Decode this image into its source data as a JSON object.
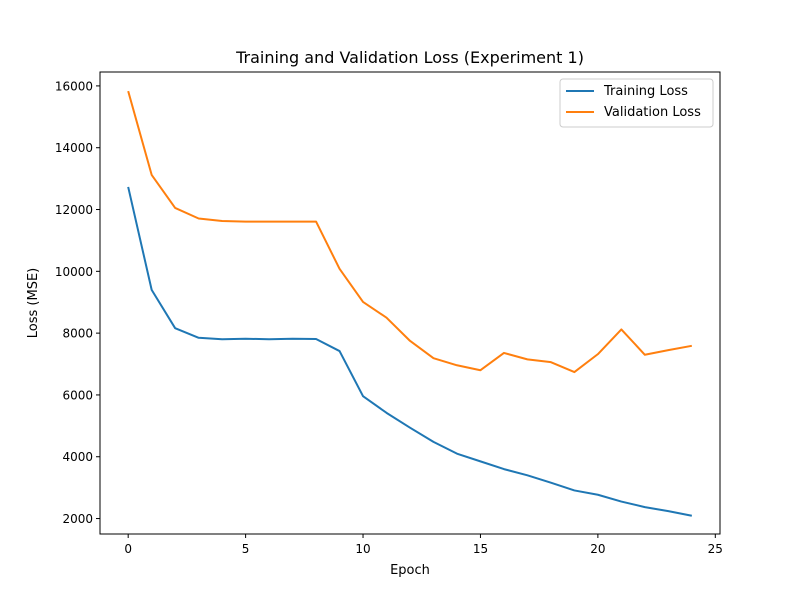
{
  "chart_data": {
    "type": "line",
    "title": "Training and Validation Loss (Experiment 1)",
    "xlabel": "Epoch",
    "ylabel": "Loss (MSE)",
    "xlim": [
      -1.2,
      25.2
    ],
    "ylim": [
      1500,
      16450
    ],
    "xticks": [
      0,
      5,
      10,
      15,
      20,
      25
    ],
    "yticks": [
      2000,
      4000,
      6000,
      8000,
      10000,
      12000,
      14000,
      16000
    ],
    "grid": false,
    "legend_position": "top-right",
    "x": [
      0,
      1,
      2,
      3,
      4,
      5,
      6,
      7,
      8,
      9,
      10,
      11,
      12,
      13,
      14,
      15,
      16,
      17,
      18,
      19,
      20,
      21,
      22,
      23,
      24
    ],
    "series": [
      {
        "name": "Training Loss",
        "color": "#1f77b4",
        "values": [
          12730,
          9400,
          8160,
          7850,
          7800,
          7820,
          7800,
          7820,
          7810,
          7420,
          5960,
          5420,
          4940,
          4480,
          4100,
          3850,
          3600,
          3400,
          3160,
          2910,
          2770,
          2550,
          2370,
          2240,
          2090
        ]
      },
      {
        "name": "Validation Loss",
        "color": "#ff7f0e",
        "values": [
          15830,
          13120,
          12050,
          11710,
          11630,
          11610,
          11610,
          11610,
          11610,
          10080,
          9010,
          8500,
          7750,
          7190,
          6960,
          6800,
          7360,
          7150,
          7060,
          6740,
          7320,
          8120,
          7300,
          7450,
          7590
        ]
      }
    ]
  }
}
